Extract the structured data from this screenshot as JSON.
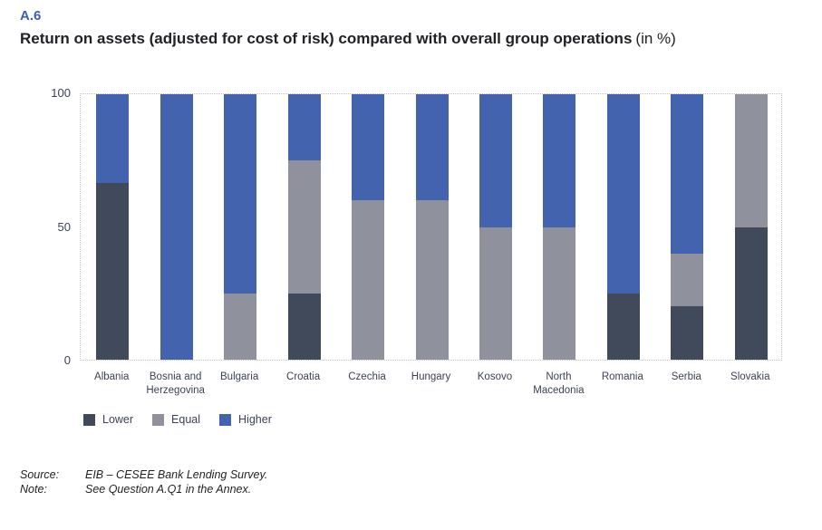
{
  "page": {
    "figure_number": "A.6",
    "title": "Return on assets (adjusted for cost of risk) compared with overall group operations",
    "title_suffix": "(in %)"
  },
  "footer": {
    "source_label": "Source:",
    "source_text": "EIB – CESEE Bank Lending Survey.",
    "note_label": "Note:",
    "note_text": "See Question A.Q1 in the Annex."
  },
  "chart_data": {
    "type": "bar",
    "stacked": true,
    "title": "Return on assets (adjusted for cost of risk) compared with overall group operations (in %)",
    "categories": [
      "Albania",
      "Bosnia and Herzegovina",
      "Bulgaria",
      "Croatia",
      "Czechia",
      "Hungary",
      "Kosovo",
      "North Macedonia",
      "Romania",
      "Serbia",
      "Slovakia"
    ],
    "series": [
      {
        "name": "Lower",
        "color": "#404a5b",
        "values": [
          66.7,
          0,
          0,
          25,
          0,
          0,
          0,
          0,
          25,
          20,
          50
        ]
      },
      {
        "name": "Equal",
        "color": "#8f919d",
        "values": [
          0,
          0,
          25,
          50,
          60,
          60,
          50,
          50,
          0,
          20,
          50
        ]
      },
      {
        "name": "Higher",
        "color": "#4363ae",
        "values": [
          33.3,
          100,
          75,
          25,
          40,
          40,
          50,
          50,
          75,
          60,
          0
        ]
      }
    ],
    "xlabel": "",
    "ylabel": "",
    "ylim": [
      0,
      100
    ],
    "y_ticks": [
      0,
      50,
      100
    ],
    "grid": false,
    "legend_position": "bottom-left"
  }
}
